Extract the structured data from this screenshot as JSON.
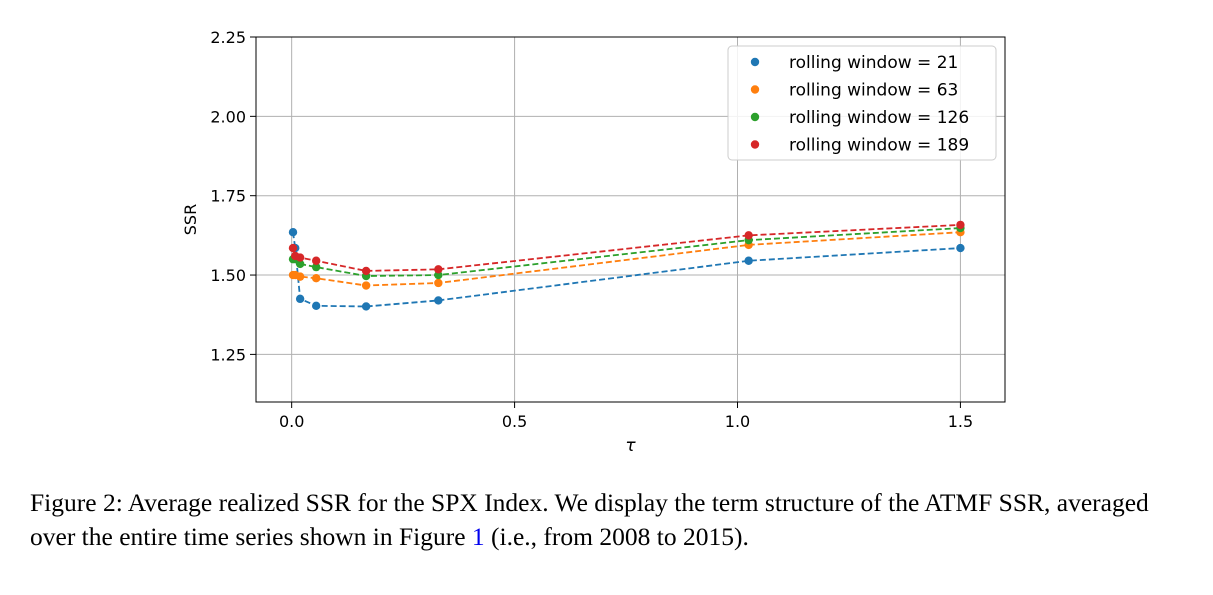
{
  "chart_data": {
    "type": "line",
    "title": "",
    "xlabel": "τ",
    "ylabel": "SSR",
    "xlim": [
      -0.08,
      1.6
    ],
    "ylim": [
      1.1,
      2.25
    ],
    "xticks": [
      0.0,
      0.5,
      1.0,
      1.5
    ],
    "xtick_labels": [
      "0.0",
      "0.5",
      "1.0",
      "1.5"
    ],
    "yticks": [
      1.25,
      1.5,
      1.75,
      2.0,
      2.25
    ],
    "ytick_labels": [
      "1.25",
      "1.50",
      "1.75",
      "2.00",
      "2.25"
    ],
    "grid": true,
    "legend_position": "top-right",
    "line_style": "dashed",
    "series": [
      {
        "name": "rolling window = 21",
        "color": "#1f77b4",
        "points": [
          [
            0.003,
            1.635
          ],
          [
            0.008,
            1.585
          ],
          [
            0.019,
            1.425
          ],
          [
            0.055,
            1.403
          ],
          [
            0.167,
            1.401
          ],
          [
            0.329,
            1.42
          ],
          [
            1.025,
            1.545
          ],
          [
            1.5,
            1.585
          ]
        ]
      },
      {
        "name": "rolling window = 63",
        "color": "#ff7f0e",
        "points": [
          [
            0.003,
            1.5
          ],
          [
            0.008,
            1.5
          ],
          [
            0.019,
            1.495
          ],
          [
            0.055,
            1.49
          ],
          [
            0.167,
            1.467
          ],
          [
            0.329,
            1.475
          ],
          [
            1.025,
            1.595
          ],
          [
            1.5,
            1.635
          ]
        ]
      },
      {
        "name": "rolling window = 126",
        "color": "#2ca02c",
        "points": [
          [
            0.003,
            1.55
          ],
          [
            0.008,
            1.55
          ],
          [
            0.019,
            1.535
          ],
          [
            0.055,
            1.525
          ],
          [
            0.167,
            1.497
          ],
          [
            0.329,
            1.5
          ],
          [
            1.025,
            1.61
          ],
          [
            1.5,
            1.648
          ]
        ]
      },
      {
        "name": "rolling window = 189",
        "color": "#d62728",
        "points": [
          [
            0.003,
            1.585
          ],
          [
            0.008,
            1.56
          ],
          [
            0.019,
            1.555
          ],
          [
            0.055,
            1.545
          ],
          [
            0.167,
            1.513
          ],
          [
            0.329,
            1.518
          ],
          [
            1.025,
            1.625
          ],
          [
            1.5,
            1.658
          ]
        ]
      }
    ]
  },
  "caption": {
    "text_before": "Figure 2: Average realized SSR for the SPX Index. We display the term structure of the ATMF SSR, averaged over the entire time series shown in Figure ",
    "ref": "1",
    "text_after": " (i.e., from 2008 to 2015)."
  }
}
